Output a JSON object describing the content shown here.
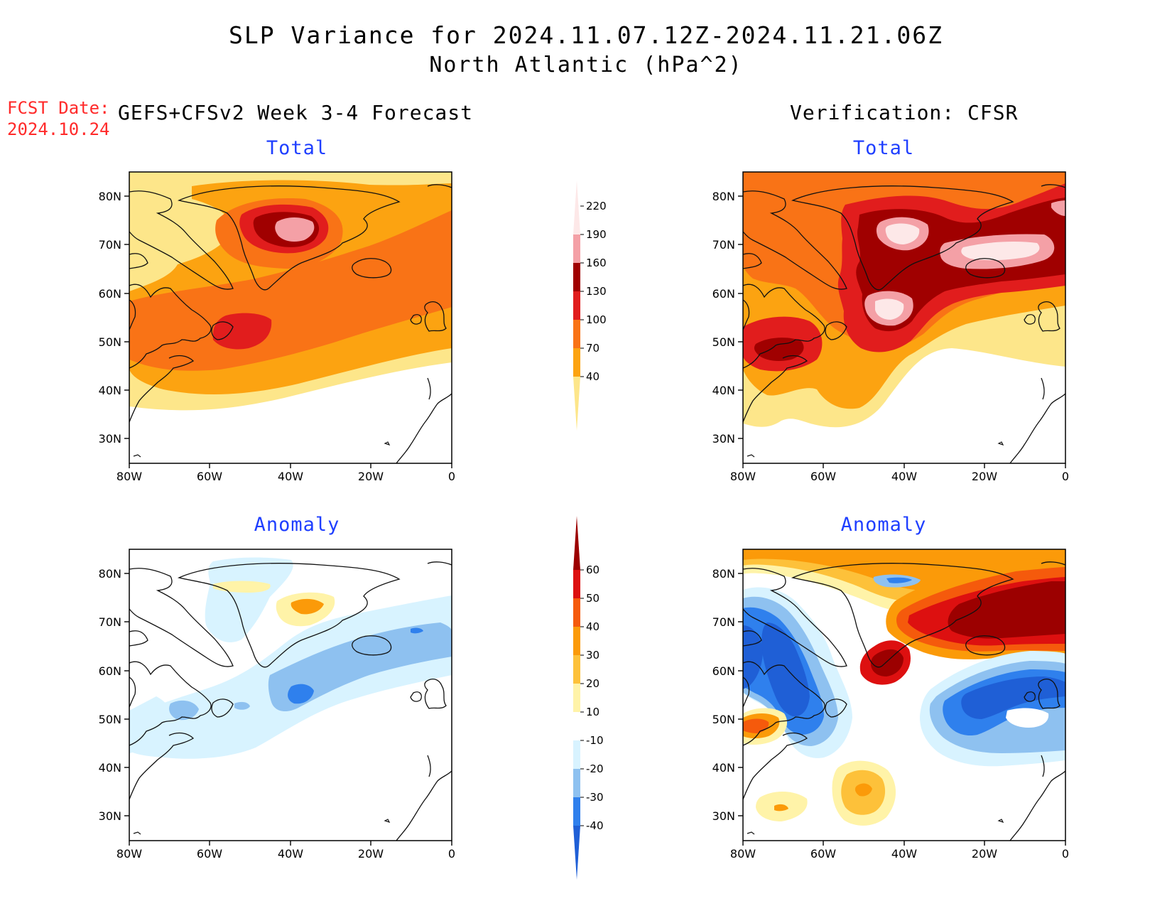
{
  "header": {
    "title": "SLP Variance for 2024.11.07.12Z-2024.11.21.06Z",
    "region": "North Atlantic (hPa^2)",
    "fcst_date_label": "FCST Date:",
    "fcst_date_value": "2024.10.24",
    "left_heading": "GEFS+CFSv2 Week 3-4 Forecast",
    "right_heading": "Verification: CFSR"
  },
  "panels": {
    "forecast_total_label": "Total",
    "verif_total_label": "Total",
    "forecast_anomaly_label": "Anomaly",
    "verif_anomaly_label": "Anomaly"
  },
  "axes": {
    "lat_ticks": [
      "80N",
      "70N",
      "60N",
      "50N",
      "40N",
      "30N"
    ],
    "lon_ticks": [
      "80W",
      "60W",
      "40W",
      "20W",
      "0"
    ]
  },
  "colorbars": {
    "total": {
      "levels": [
        "40",
        "70",
        "100",
        "130",
        "160",
        "190",
        "220"
      ],
      "colors": [
        "#fde68a",
        "#fca311",
        "#f97316",
        "#e11d1d",
        "#a00000",
        "#f4a0a6",
        "#fde8e8"
      ]
    },
    "anomaly": {
      "levels": [
        "-40",
        "-30",
        "-20",
        "-10",
        "10",
        "20",
        "30",
        "40",
        "50",
        "60"
      ],
      "colors": [
        "#1f5fd6",
        "#2f80ed",
        "#8ec1f0",
        "#d8f3ff",
        "#ffffff",
        "#fff3a8",
        "#fdc13a",
        "#fb9a09",
        "#f55a0c",
        "#dd1010",
        "#9c0000"
      ]
    }
  }
}
